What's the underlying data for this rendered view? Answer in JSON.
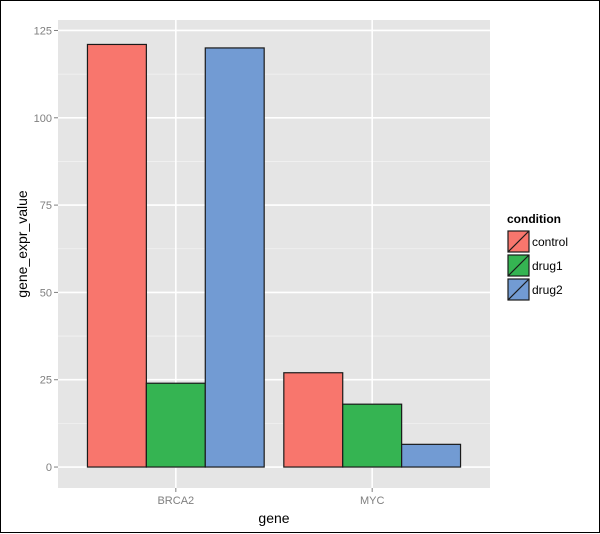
{
  "chart_data": {
    "type": "bar",
    "categories": [
      "BRCA2",
      "MYC"
    ],
    "series": [
      {
        "name": "control",
        "values": [
          121,
          27
        ],
        "color": "#F8766D"
      },
      {
        "name": "drug1",
        "values": [
          24,
          18
        ],
        "color": "#35B452"
      },
      {
        "name": "drug2",
        "values": [
          120,
          6.5
        ],
        "color": "#729BD3"
      }
    ],
    "xlabel": "gene",
    "ylabel": "gene_expr_value",
    "ylim": [
      -6,
      128
    ],
    "yticks": [
      0,
      25,
      50,
      75,
      100,
      125
    ],
    "ytick_labels": [
      "0",
      "25",
      "50",
      "75",
      "100",
      "125"
    ],
    "legend": {
      "title": "condition",
      "position": "right"
    },
    "grid": true,
    "panel_background": "#E5E5E5",
    "grid_color": "#FFFFFF"
  }
}
